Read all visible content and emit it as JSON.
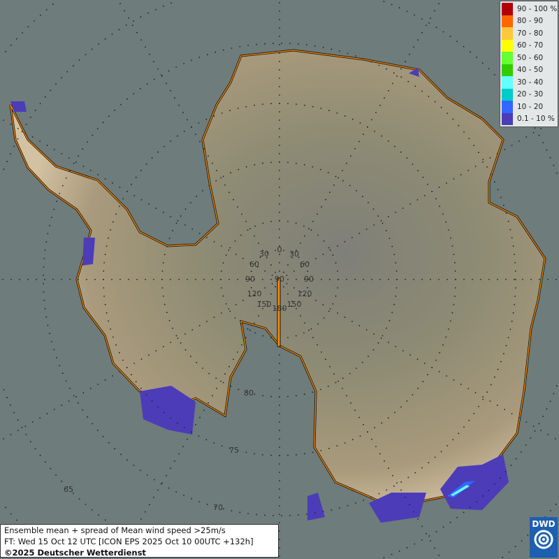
{
  "legend": {
    "items": [
      {
        "label": "90 - 100 %",
        "color": "#b30000"
      },
      {
        "label": "80 - 90",
        "color": "#ff6600"
      },
      {
        "label": "70 - 80",
        "color": "#ffc83c"
      },
      {
        "label": "60 - 70",
        "color": "#ffff00"
      },
      {
        "label": "50 - 60",
        "color": "#66ff33"
      },
      {
        "label": "40 - 50",
        "color": "#33cc00"
      },
      {
        "label": "30 - 40",
        "color": "#66ffff"
      },
      {
        "label": "20 - 30",
        "color": "#00cccc"
      },
      {
        "label": "10 - 20",
        "color": "#3366ff"
      },
      {
        "label": "0.1 - 10 %",
        "color": "#4c3cb8"
      }
    ]
  },
  "grid": {
    "longitude_labels": [
      "0",
      "30",
      "30",
      "60",
      "60",
      "90",
      "90",
      "90",
      "120",
      "120",
      "150",
      "150",
      "180"
    ],
    "latitude_labels": [
      "80",
      "75",
      "70",
      "65"
    ]
  },
  "info": {
    "line1": "Ensemble mean + spread of Mean wind speed >25m/s",
    "line2": "FT: Wed 15 Oct 12 UTC [ICON EPS 2025 Oct 10 00UTC +132h]",
    "line3": "©2025 Deutscher Wetterdienst"
  },
  "logo": {
    "text": "DWD"
  },
  "colors": {
    "sea": "#6e7c7b",
    "coast": "#ff8c00",
    "land_edge": "#cbbb9c",
    "land_inner": "#8c8a78"
  }
}
